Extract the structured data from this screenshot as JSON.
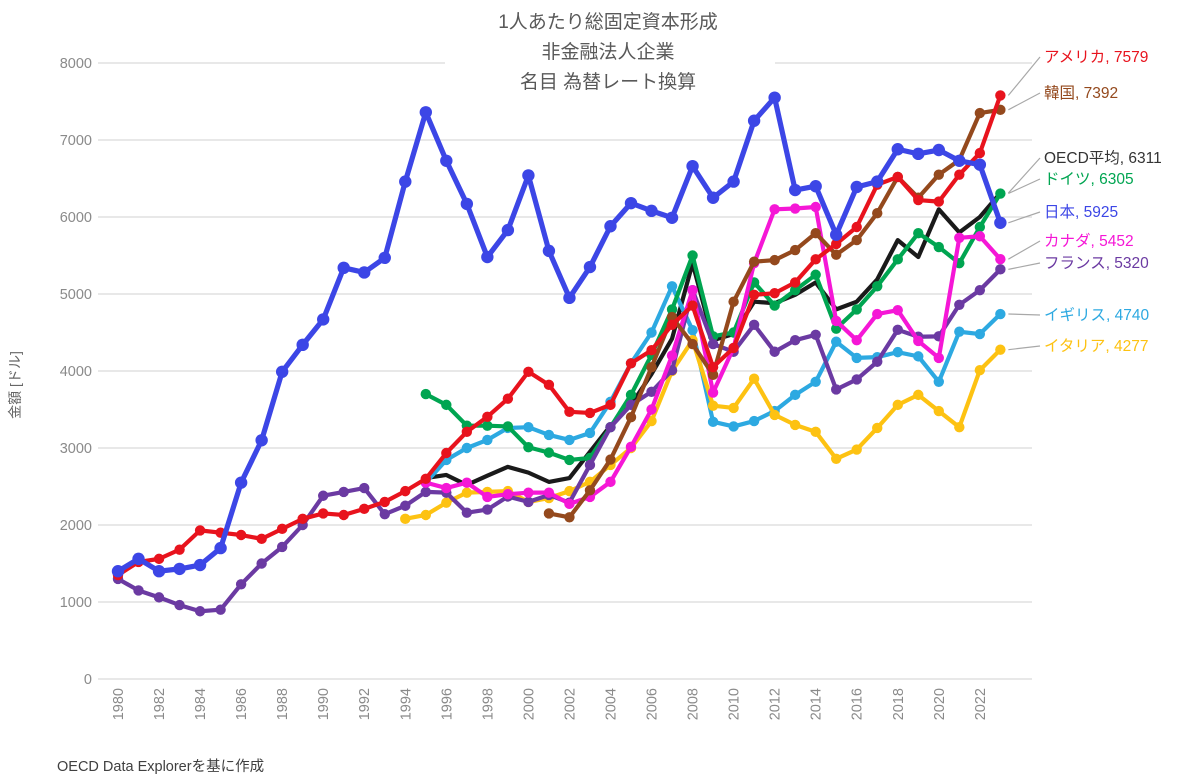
{
  "title": {
    "line1": "1人あたり総固定資本形成",
    "line2": "非金融法人企業",
    "line3": "名目 為替レート換算"
  },
  "source_note": "OECD Data Explorerを基に作成",
  "chart_data": {
    "type": "line",
    "title": "1人あたり総固定資本形成 非金融法人企業 名目 為替レート換算",
    "xlabel": "",
    "ylabel": "金額 [ドル]",
    "ylim": [
      0,
      8000
    ],
    "y_ticks": [
      0,
      1000,
      2000,
      3000,
      4000,
      5000,
      6000,
      7000,
      8000
    ],
    "x": [
      1980,
      1981,
      1982,
      1983,
      1984,
      1985,
      1986,
      1987,
      1988,
      1989,
      1990,
      1991,
      1992,
      1993,
      1994,
      1995,
      1996,
      1997,
      1998,
      1999,
      2000,
      2001,
      2002,
      2003,
      2004,
      2005,
      2006,
      2007,
      2008,
      2009,
      2010,
      2011,
      2012,
      2013,
      2014,
      2015,
      2016,
      2017,
      2018,
      2019,
      2020,
      2021,
      2022,
      2023
    ],
    "x_tick_labels": [
      "1980",
      "1982",
      "1984",
      "1986",
      "1988",
      "1990",
      "1992",
      "1994",
      "1996",
      "1998",
      "2000",
      "2002",
      "2004",
      "2006",
      "2008",
      "2010",
      "2012",
      "2014",
      "2016",
      "2018",
      "2020",
      "2022"
    ],
    "grid": "horizontal",
    "legend_position": "right-end-labels",
    "grid_color": "#d9d9d9",
    "tick_color": "#8a8a8a",
    "leader_color": "#a8a8a8",
    "series": [
      {
        "id": "oecd",
        "name": "OECD平均",
        "end_value": 6311,
        "color": "#1a1a1a",
        "label_color": "#333333",
        "markers": false,
        "values": [
          null,
          null,
          null,
          null,
          null,
          null,
          null,
          null,
          null,
          null,
          null,
          null,
          null,
          null,
          null,
          2610,
          2650,
          2520,
          2640,
          2755,
          2680,
          2560,
          2610,
          2950,
          3290,
          3560,
          3960,
          4420,
          5400,
          4400,
          4480,
          4900,
          4880,
          4990,
          5150,
          4800,
          4900,
          5190,
          5700,
          5480,
          6100,
          5800,
          6000,
          6311
        ]
      },
      {
        "id": "uk",
        "name": "イギリス",
        "end_value": 4740,
        "color": "#2da9e1",
        "label_color": "#2da9e1",
        "markers": true,
        "values": [
          null,
          null,
          null,
          null,
          null,
          null,
          null,
          null,
          null,
          null,
          null,
          null,
          null,
          null,
          null,
          2550,
          2845,
          3000,
          3105,
          3260,
          3270,
          3170,
          3105,
          3195,
          3600,
          4100,
          4500,
          5100,
          4530,
          3340,
          3280,
          3350,
          3480,
          3690,
          3860,
          4380,
          4170,
          4180,
          4245,
          4190,
          3860,
          4510,
          4480,
          4740
        ]
      },
      {
        "id": "italy",
        "name": "イタリア",
        "end_value": 4277,
        "color": "#fdc212",
        "label_color": "#fdc212",
        "markers": true,
        "values": [
          null,
          null,
          null,
          null,
          null,
          null,
          null,
          null,
          null,
          null,
          null,
          null,
          null,
          null,
          2080,
          2130,
          2290,
          2420,
          2430,
          2440,
          2300,
          2350,
          2440,
          2560,
          2780,
          3000,
          3350,
          4000,
          4400,
          3550,
          3520,
          3900,
          3430,
          3300,
          3210,
          2860,
          2980,
          3260,
          3560,
          3690,
          3480,
          3270,
          4010,
          4277
        ]
      },
      {
        "id": "germany",
        "name": "ドイツ",
        "end_value": 6305,
        "color": "#00a551",
        "label_color": "#00a551",
        "markers": true,
        "values": [
          null,
          null,
          null,
          null,
          null,
          null,
          null,
          null,
          null,
          null,
          null,
          null,
          null,
          null,
          null,
          3700,
          3560,
          3290,
          3290,
          3280,
          3010,
          2940,
          2845,
          2870,
          3270,
          3690,
          4210,
          4800,
          5500,
          4450,
          4500,
          5150,
          4850,
          5050,
          5250,
          4550,
          4800,
          5100,
          5450,
          5790,
          5610,
          5400,
          5870,
          6305
        ]
      },
      {
        "id": "france",
        "name": "フランス",
        "end_value": 5320,
        "color": "#6b3aa2",
        "label_color": "#6b3aa2",
        "markers": true,
        "values": [
          1300,
          1150,
          1060,
          960,
          880,
          900,
          1230,
          1500,
          1715,
          2000,
          2380,
          2430,
          2480,
          2140,
          2250,
          2430,
          2420,
          2160,
          2200,
          2370,
          2300,
          2390,
          2290,
          2780,
          3270,
          3560,
          3730,
          4010,
          5050,
          4350,
          4250,
          4600,
          4250,
          4400,
          4470,
          3760,
          3890,
          4120,
          4535,
          4445,
          4450,
          4860,
          5050,
          5320
        ]
      },
      {
        "id": "canada",
        "name": "カナダ",
        "end_value": 5452,
        "color": "#f517d6",
        "label_color": "#f517d6",
        "markers": true,
        "values": [
          null,
          null,
          null,
          null,
          null,
          null,
          null,
          null,
          null,
          null,
          null,
          null,
          null,
          null,
          null,
          2550,
          2480,
          2550,
          2365,
          2400,
          2420,
          2420,
          2275,
          2365,
          2560,
          3015,
          3500,
          4200,
          5050,
          3720,
          4300,
          5400,
          6100,
          6110,
          6130,
          4650,
          4400,
          4740,
          4790,
          4390,
          4170,
          5730,
          5750,
          5452
        ]
      },
      {
        "id": "korea",
        "name": "韓国",
        "end_value": 7392,
        "color": "#94491d",
        "label_color": "#94491d",
        "markers": true,
        "values": [
          null,
          null,
          null,
          null,
          null,
          null,
          null,
          null,
          null,
          null,
          null,
          null,
          null,
          null,
          null,
          null,
          null,
          null,
          null,
          null,
          null,
          2150,
          2100,
          2450,
          2850,
          3400,
          4050,
          4700,
          4350,
          3950,
          4900,
          5420,
          5440,
          5570,
          5790,
          5510,
          5700,
          6050,
          6520,
          6250,
          6550,
          6740,
          7350,
          7392
        ]
      },
      {
        "id": "usa",
        "name": "アメリカ",
        "end_value": 7579,
        "color": "#e8131d",
        "label_color": "#e8131d",
        "markers": true,
        "values": [
          1350,
          1520,
          1560,
          1680,
          1930,
          1900,
          1870,
          1820,
          1950,
          2080,
          2150,
          2130,
          2210,
          2300,
          2440,
          2600,
          2935,
          3210,
          3405,
          3640,
          3990,
          3820,
          3470,
          3455,
          3560,
          4100,
          4270,
          4600,
          4850,
          4050,
          4300,
          4990,
          5010,
          5150,
          5450,
          5650,
          5870,
          6420,
          6520,
          6220,
          6200,
          6550,
          6830,
          7579
        ]
      },
      {
        "id": "japan",
        "name": "日本",
        "end_value": 5925,
        "color": "#3c46e6",
        "label_color": "#3c46e6",
        "markers": true,
        "values": [
          1400,
          1560,
          1400,
          1430,
          1480,
          1700,
          2550,
          3100,
          3990,
          4340,
          4670,
          5340,
          5280,
          5470,
          6460,
          7360,
          6730,
          6170,
          5480,
          5830,
          6540,
          5560,
          4950,
          5350,
          5880,
          6180,
          6080,
          5990,
          6660,
          6250,
          6460,
          7250,
          7550,
          6350,
          6400,
          5770,
          6390,
          6460,
          6880,
          6820,
          6870,
          6730,
          6680,
          5925
        ]
      }
    ]
  }
}
